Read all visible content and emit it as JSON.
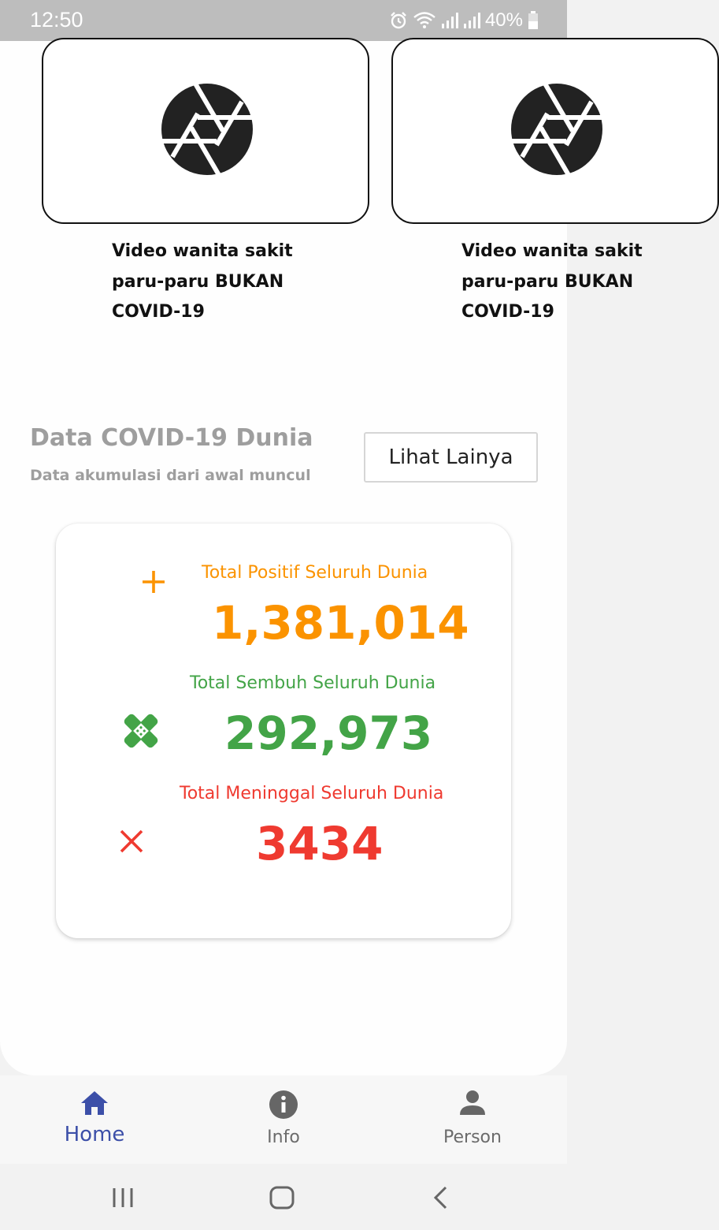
{
  "status_bar": {
    "time": "12:50",
    "battery": "40%"
  },
  "videos": [
    {
      "title": "Video wanita sakit paru-paru BUKAN COVID-19"
    },
    {
      "title": "Video wanita sakit paru-paru BUKAN COVID-19"
    }
  ],
  "world_section": {
    "title": "Data COVID-19 Dunia",
    "subtitle": "Data akumulasi dari awal muncul",
    "more_label": "Lihat Lainya"
  },
  "stats": {
    "positive": {
      "label": "Total Positif Seluruh Dunia",
      "value": "1,381,014",
      "color": "#fb9300"
    },
    "recovered": {
      "label": "Total Sembuh Seluruh Dunia",
      "value": "292,973",
      "color": "#43a447"
    },
    "deaths": {
      "label": "Total Meninggal Seluruh Dunia",
      "value": "3434",
      "color": "#ef3a30"
    }
  },
  "bottom_nav": {
    "items": [
      {
        "label": "Home",
        "icon": "home-icon",
        "active": true
      },
      {
        "label": "Info",
        "icon": "info-icon",
        "active": false
      },
      {
        "label": "Person",
        "icon": "person-icon",
        "active": false
      }
    ],
    "active_color": "#3c4fa8"
  },
  "system_nav": {
    "icons": [
      "recents-icon",
      "home-circle-icon",
      "back-icon"
    ]
  }
}
